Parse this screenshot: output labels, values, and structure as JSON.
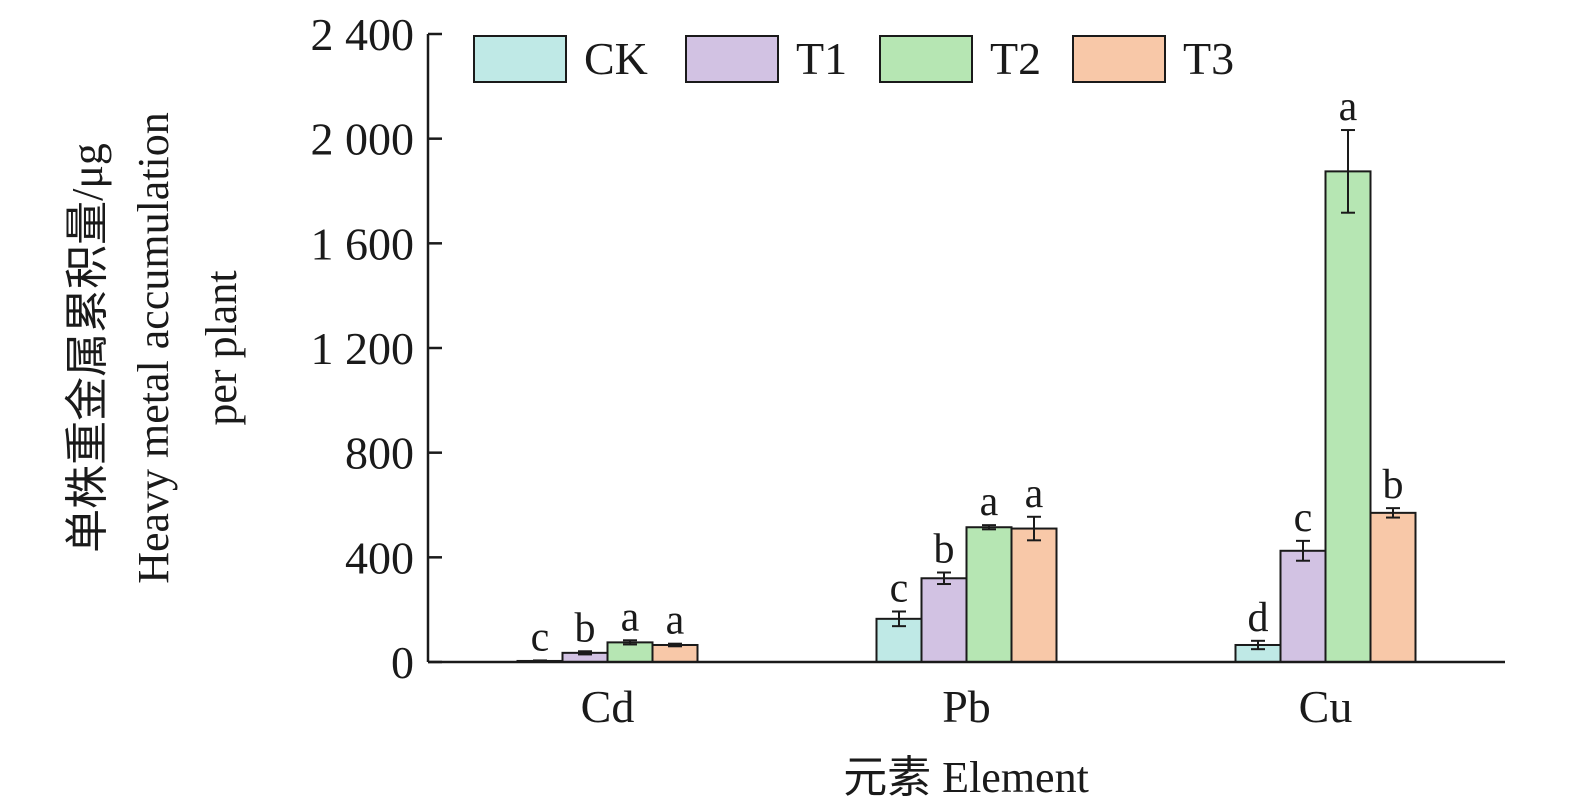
{
  "chart_data": {
    "type": "bar",
    "categories": [
      "Cd",
      "Pb",
      "Cu"
    ],
    "xlabel": "元素 Element",
    "ylabel": [
      "单株重金属累积量/μg",
      "Heavy metal accumulation",
      "per plant"
    ],
    "ylim": [
      0,
      2400
    ],
    "yticks": [
      0,
      400,
      800,
      1200,
      1600,
      2000,
      2400
    ],
    "ytick_labels": [
      "0",
      "400",
      "800",
      "1 200",
      "1 600",
      "2 000",
      "2 400"
    ],
    "legend_placement": "top",
    "series": [
      {
        "name": "CK",
        "color": "#bfe9e6",
        "values": [
          4,
          165,
          65
        ],
        "errors": [
          2,
          28,
          16
        ],
        "labels": [
          "c",
          "c",
          "d"
        ]
      },
      {
        "name": "T1",
        "color": "#d2c2e3",
        "values": [
          35,
          320,
          425
        ],
        "errors": [
          6,
          22,
          38
        ],
        "labels": [
          "b",
          "b",
          "c"
        ]
      },
      {
        "name": "T2",
        "color": "#b6e6b3",
        "values": [
          75,
          515,
          1875
        ],
        "errors": [
          8,
          8,
          158
        ],
        "labels": [
          "a",
          "a",
          "a"
        ]
      },
      {
        "name": "T3",
        "color": "#f8c8a8",
        "values": [
          65,
          510,
          570
        ],
        "errors": [
          5,
          45,
          18
        ],
        "labels": [
          "a",
          "a",
          "b"
        ]
      }
    ]
  }
}
